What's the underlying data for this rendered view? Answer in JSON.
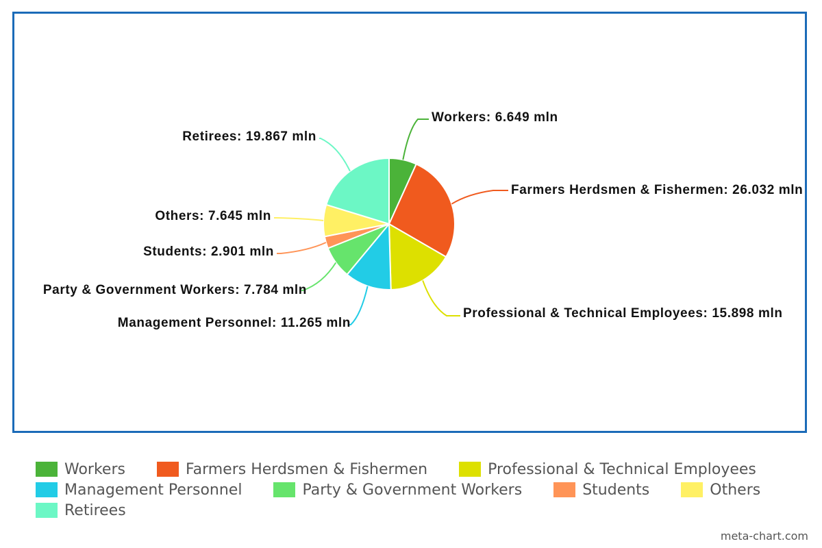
{
  "chart_data": {
    "type": "pie",
    "unit": "mln",
    "slices": [
      {
        "name": "Workers",
        "value": 6.649,
        "label": "Workers: 6.649 mln",
        "color": "#4bb339"
      },
      {
        "name": "Farmers Herdsmen & Fishermen",
        "value": 26.032,
        "label": "Farmers Herdsmen & Fishermen: 26.032 mln",
        "color": "#f05a1e"
      },
      {
        "name": "Professional & Technical Employees",
        "value": 15.898,
        "label": "Professional & Technical Employees: 15.898 mln",
        "color": "#dde000"
      },
      {
        "name": "Management Personnel",
        "value": 11.265,
        "label": "Management Personnel: 11.265 mln",
        "color": "#22cce6"
      },
      {
        "name": "Party & Government Workers",
        "value": 7.784,
        "label": "Party & Government Workers: 7.784 mln",
        "color": "#66e46c"
      },
      {
        "name": "Students",
        "value": 2.901,
        "label": "Students: 2.901 mln",
        "color": "#ff9457"
      },
      {
        "name": "Others",
        "value": 7.645,
        "label": "Others: 7.645 mln",
        "color": "#fff064"
      },
      {
        "name": "Retirees",
        "value": 19.867,
        "label": "Retirees: 19.867 mln",
        "color": "#6cf7c5"
      }
    ],
    "legend": {
      "placement": "bottom",
      "entries": [
        "Workers",
        "Farmers Herdsmen & Fishermen",
        "Professional & Technical Employees",
        "Management Personnel",
        "Party & Government Workers",
        "Students",
        "Others",
        "Retirees"
      ]
    }
  },
  "colors": {
    "frame_border": "#1b6bb8"
  },
  "credit": "meta-chart.com"
}
